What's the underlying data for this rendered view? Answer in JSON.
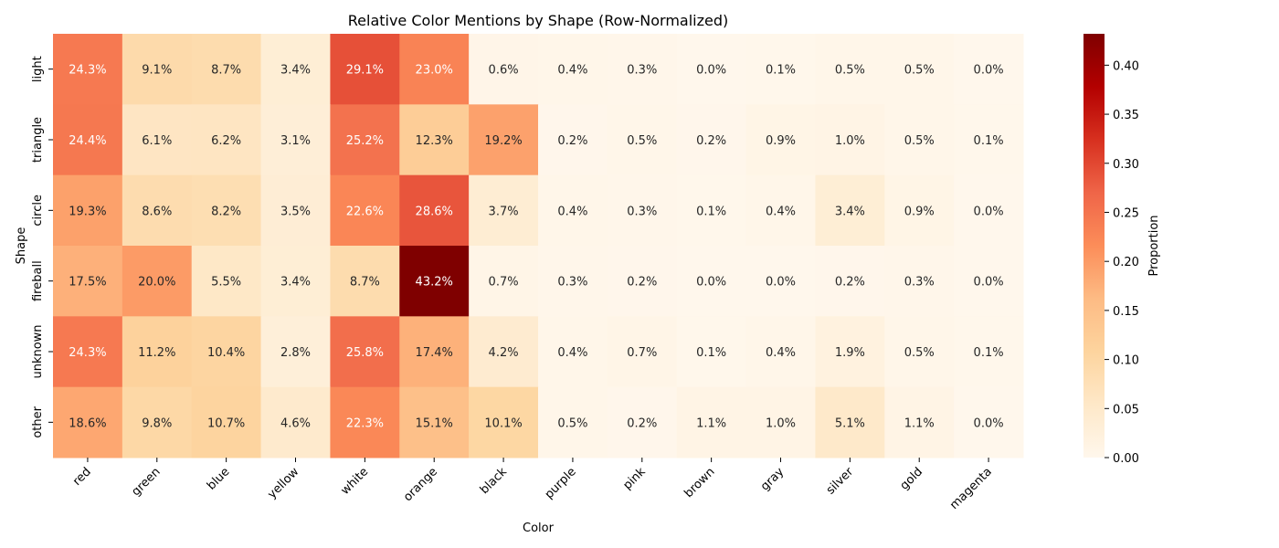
{
  "chart_data": {
    "type": "heatmap",
    "title": "Relative Color Mentions by Shape (Row-Normalized)",
    "xlabel": "Color",
    "ylabel": "Shape",
    "colorbar_label": "Proportion",
    "colormap": "OrRd",
    "vmin": 0.0,
    "vmax": 0.432,
    "colorbar_ticks": [
      "0.00",
      "0.05",
      "0.10",
      "0.15",
      "0.20",
      "0.25",
      "0.30",
      "0.35",
      "0.40"
    ],
    "x_categories": [
      "red",
      "green",
      "blue",
      "yellow",
      "white",
      "orange",
      "black",
      "purple",
      "pink",
      "brown",
      "gray",
      "silver",
      "gold",
      "magenta"
    ],
    "y_categories": [
      "light",
      "triangle",
      "circle",
      "fireball",
      "unknown",
      "other"
    ],
    "values": [
      [
        0.243,
        0.091,
        0.087,
        0.034,
        0.291,
        0.23,
        0.006,
        0.004,
        0.003,
        0.0,
        0.001,
        0.005,
        0.005,
        0.0
      ],
      [
        0.244,
        0.061,
        0.062,
        0.031,
        0.252,
        0.123,
        0.192,
        0.002,
        0.005,
        0.002,
        0.009,
        0.01,
        0.005,
        0.001
      ],
      [
        0.193,
        0.086,
        0.082,
        0.035,
        0.226,
        0.286,
        0.037,
        0.004,
        0.003,
        0.001,
        0.004,
        0.034,
        0.009,
        0.0
      ],
      [
        0.175,
        0.2,
        0.055,
        0.034,
        0.087,
        0.432,
        0.007,
        0.003,
        0.002,
        0.0,
        0.0,
        0.002,
        0.003,
        0.0
      ],
      [
        0.243,
        0.112,
        0.104,
        0.028,
        0.258,
        0.174,
        0.042,
        0.004,
        0.007,
        0.001,
        0.004,
        0.019,
        0.005,
        0.001
      ],
      [
        0.186,
        0.098,
        0.107,
        0.046,
        0.223,
        0.151,
        0.101,
        0.005,
        0.002,
        0.011,
        0.01,
        0.051,
        0.011,
        0.0
      ]
    ],
    "labels": [
      [
        "24.3%",
        "9.1%",
        "8.7%",
        "3.4%",
        "29.1%",
        "23.0%",
        "0.6%",
        "0.4%",
        "0.3%",
        "0.0%",
        "0.1%",
        "0.5%",
        "0.5%",
        "0.0%"
      ],
      [
        "24.4%",
        "6.1%",
        "6.2%",
        "3.1%",
        "25.2%",
        "12.3%",
        "19.2%",
        "0.2%",
        "0.5%",
        "0.2%",
        "0.9%",
        "1.0%",
        "0.5%",
        "0.1%"
      ],
      [
        "19.3%",
        "8.6%",
        "8.2%",
        "3.5%",
        "22.6%",
        "28.6%",
        "3.7%",
        "0.4%",
        "0.3%",
        "0.1%",
        "0.4%",
        "3.4%",
        "0.9%",
        "0.0%"
      ],
      [
        "17.5%",
        "20.0%",
        "5.5%",
        "3.4%",
        "8.7%",
        "43.2%",
        "0.7%",
        "0.3%",
        "0.2%",
        "0.0%",
        "0.0%",
        "0.2%",
        "0.3%",
        "0.0%"
      ],
      [
        "24.3%",
        "11.2%",
        "10.4%",
        "2.8%",
        "25.8%",
        "17.4%",
        "4.2%",
        "0.4%",
        "0.7%",
        "0.1%",
        "0.4%",
        "1.9%",
        "0.5%",
        "0.1%"
      ],
      [
        "18.6%",
        "9.8%",
        "10.7%",
        "4.6%",
        "22.3%",
        "15.1%",
        "10.1%",
        "0.5%",
        "0.2%",
        "1.1%",
        "1.0%",
        "5.1%",
        "1.1%",
        "0.0%"
      ]
    ],
    "grid": false
  }
}
